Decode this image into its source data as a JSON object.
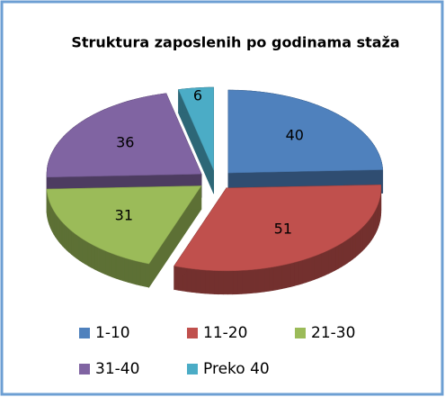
{
  "chart_data": {
    "type": "pie",
    "title": "Struktura zaposlenih po godinama staža",
    "categories": [
      "1-10",
      "11-20",
      "21-30",
      "31-40",
      "Preko 40"
    ],
    "values": [
      40,
      51,
      31,
      36,
      6
    ],
    "colors": [
      "#4f81bd",
      "#c0504d",
      "#9bbb59",
      "#8064a2",
      "#4bacc6"
    ],
    "legend": "bottom"
  }
}
